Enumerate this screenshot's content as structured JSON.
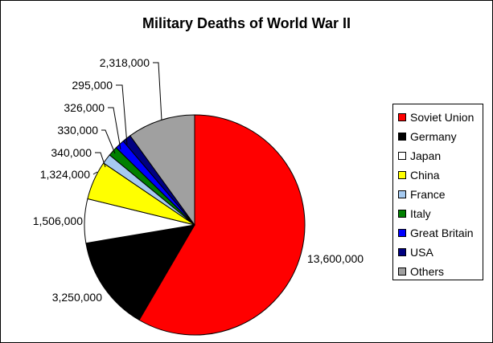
{
  "chart_data": {
    "type": "pie",
    "title": "Military Deaths of World War II",
    "slices": [
      {
        "label": "Soviet Union",
        "value": 13600000,
        "value_label": "13,600,000",
        "color": "#ff0000"
      },
      {
        "label": "Germany",
        "value": 3250000,
        "value_label": "3,250,000",
        "color": "#000000"
      },
      {
        "label": "Japan",
        "value": 1506000,
        "value_label": "1,506,000",
        "color": "#ffffff"
      },
      {
        "label": "China",
        "value": 1324000,
        "value_label": "1,324,000",
        "color": "#ffff00"
      },
      {
        "label": "France",
        "value": 340000,
        "value_label": "340,000",
        "color": "#a6caf0"
      },
      {
        "label": "Italy",
        "value": 330000,
        "value_label": "330,000",
        "color": "#008000"
      },
      {
        "label": "Great Britain",
        "value": 326000,
        "value_label": "326,000",
        "color": "#0000ff"
      },
      {
        "label": "USA",
        "value": 295000,
        "value_label": "295,000",
        "color": "#000080"
      },
      {
        "label": "Others",
        "value": 2318000,
        "value_label": "2,318,000",
        "color": "#a0a0a0"
      }
    ],
    "legend_position": "right"
  }
}
